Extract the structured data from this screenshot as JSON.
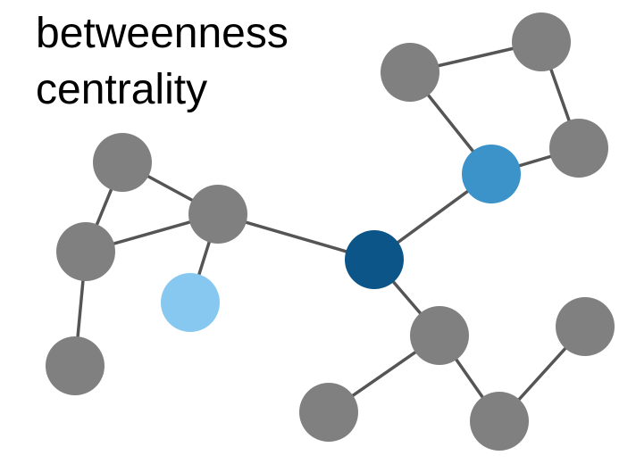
{
  "title": {
    "line1": "betweenness",
    "line2": "centrality"
  },
  "colors": {
    "background": "#ffffff",
    "edge": "#555555",
    "node_default": "#808080",
    "node_high": "#0b5588",
    "node_medium": "#3b93c9",
    "node_low": "#86c8f0",
    "title_text": "#000000"
  },
  "graph": {
    "nodes": [
      {
        "id": "n-a",
        "level": "default"
      },
      {
        "id": "n-b",
        "level": "default"
      },
      {
        "id": "n-c",
        "level": "default"
      },
      {
        "id": "n-d",
        "level": "default"
      },
      {
        "id": "n-e",
        "level": "low"
      },
      {
        "id": "n-f",
        "level": "high"
      },
      {
        "id": "n-g",
        "level": "medium"
      },
      {
        "id": "n-h",
        "level": "default"
      },
      {
        "id": "n-i",
        "level": "default"
      },
      {
        "id": "n-j",
        "level": "default"
      },
      {
        "id": "n-k",
        "level": "default"
      },
      {
        "id": "n-l",
        "level": "default"
      },
      {
        "id": "n-m",
        "level": "default"
      },
      {
        "id": "n-n",
        "level": "default"
      }
    ],
    "edges": [
      [
        "n-a",
        "n-c"
      ],
      [
        "n-a",
        "n-b"
      ],
      [
        "n-b",
        "n-c"
      ],
      [
        "n-b",
        "n-d"
      ],
      [
        "n-c",
        "n-e"
      ],
      [
        "n-c",
        "n-f"
      ],
      [
        "n-f",
        "n-g"
      ],
      [
        "n-g",
        "n-h"
      ],
      [
        "n-g",
        "n-j"
      ],
      [
        "n-h",
        "n-i"
      ],
      [
        "n-i",
        "n-j"
      ],
      [
        "n-f",
        "n-k"
      ],
      [
        "n-k",
        "n-l"
      ],
      [
        "n-k",
        "n-m"
      ],
      [
        "n-m",
        "n-n"
      ]
    ]
  }
}
